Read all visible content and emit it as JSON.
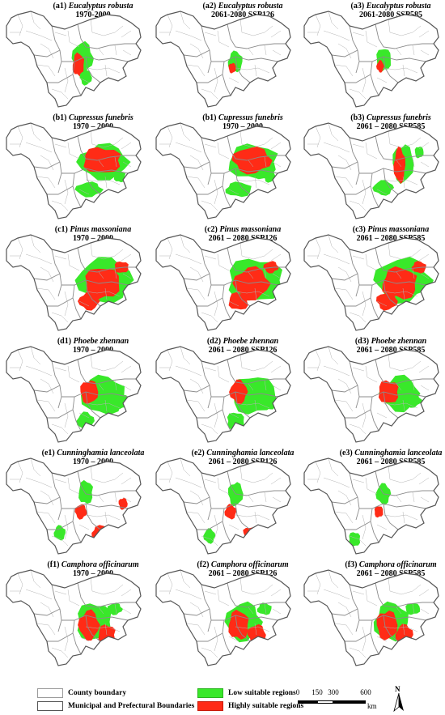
{
  "panels": [
    {
      "id": "a1",
      "species": "Eucalyptus robusta",
      "period": "1970-2000"
    },
    {
      "id": "a2",
      "species": "Eucalyptus robusta",
      "period": "2061-2080 SSP126"
    },
    {
      "id": "a3",
      "species": "Eucalyptus robusta",
      "period": "2061-2080 SSP585"
    },
    {
      "id": "b1",
      "species": "Cupressus funebris",
      "period": "1970 – 2000"
    },
    {
      "id": "b1",
      "species": "Cupressus funebris",
      "period": "1970 – 2000"
    },
    {
      "id": "b3",
      "species": "Cupressus funebris",
      "period": "2061 – 2080 SSP585"
    },
    {
      "id": "c1",
      "species": "Pinus massoniana",
      "period": "1970 – 2000"
    },
    {
      "id": "c2",
      "species": "Pinus massoniana",
      "period": "2061 – 2080 SSP126"
    },
    {
      "id": "c3",
      "species": "Pinus massoniana",
      "period": "2061 – 2080 SSP585"
    },
    {
      "id": "d1",
      "species": "Phoebe zhennan",
      "period": "1970 – 2000"
    },
    {
      "id": "d2",
      "species": "Phoebe zhennan",
      "period": "2061 – 2080 SSP126"
    },
    {
      "id": "d3",
      "species": "Phoebe zhennan",
      "period": "2061 – 2080 SSP585"
    },
    {
      "id": "e1",
      "species": "Cunninghamia lanceolata",
      "period": "1970 – 2000"
    },
    {
      "id": "e2",
      "species": "Cunninghamia lanceolata",
      "period": "2061 – 2080 SSP126"
    },
    {
      "id": "e3",
      "species": "Cunninghamia lanceolata",
      "period": "2061 – 2080 SSP585"
    },
    {
      "id": "f1",
      "species": "Camphora officinarum",
      "period": "1970 – 2000"
    },
    {
      "id": "f2",
      "species": "Camphora officinarum",
      "period": "2061 – 2080 SSP126"
    },
    {
      "id": "f3",
      "species": "Camphora officinarum",
      "period": "2061 – 2080 SSP585"
    }
  ],
  "legend": {
    "county": "County boundary",
    "municipal": "Municipal and Prefectural Boundaries",
    "low": "Low suitable regions",
    "high": "Highly suitable regions"
  },
  "colors": {
    "low": "#39e82a",
    "high": "#ff2b16",
    "boundary": "#8c8c8c",
    "outline": "#555555"
  },
  "scale": {
    "ticks": [
      "0",
      "150",
      "300",
      "600"
    ],
    "unit": "km"
  },
  "north_label": "N"
}
